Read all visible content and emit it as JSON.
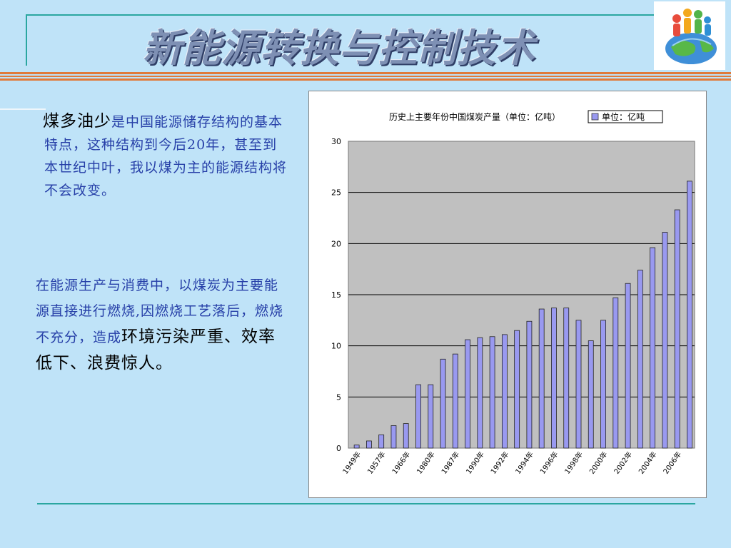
{
  "slide": {
    "title": "新能源转换与控制技术",
    "para1_lead": "煤多油少",
    "para1_rest": "是中国能源储存结构的基本特点，这种结构到今后20年，甚至到本世纪中叶，我以煤为主的能源结构将不会改变。",
    "para2_rest": "在能源生产与消费中，以煤炭为主要能源直接进行燃烧,因燃烧工艺落后，燃烧不充分，造成",
    "para2_emph": "环境污染严重、效率低下、浪费惊人。"
  },
  "colors": {
    "background": "#bfe3f8",
    "accent_line": "#2aa6a0",
    "stripe": "#e07a3a",
    "body_text": "#2740a8",
    "bar_fill": "#9999f0",
    "plot_bg": "#c0c0c0"
  },
  "logo": {
    "icon": "globe-people-icon"
  },
  "chart_data": {
    "type": "bar",
    "title": "历史上主要年份中国煤炭产量（单位：亿吨）",
    "legend": "单位：亿吨",
    "legend_position": "top-right",
    "ylim": [
      0,
      30
    ],
    "yticks": [
      "0",
      "5",
      "10",
      "15",
      "20",
      "25",
      "30"
    ],
    "grid": true,
    "xtick_labels": [
      "1949年",
      "1957年",
      "1966年",
      "1980年",
      "1987年",
      "1990年",
      "1992年",
      "1994年",
      "1996年",
      "1998年",
      "2000年",
      "2002年",
      "2004年",
      "2006年"
    ],
    "values": [
      0.3,
      0.7,
      1.3,
      2.2,
      2.4,
      6.2,
      6.2,
      8.7,
      9.2,
      10.6,
      10.8,
      10.9,
      11.1,
      11.5,
      12.4,
      13.6,
      13.7,
      13.7,
      12.5,
      10.5,
      12.5,
      14.7,
      16.1,
      17.4,
      19.6,
      21.1,
      23.3,
      26.1
    ]
  }
}
